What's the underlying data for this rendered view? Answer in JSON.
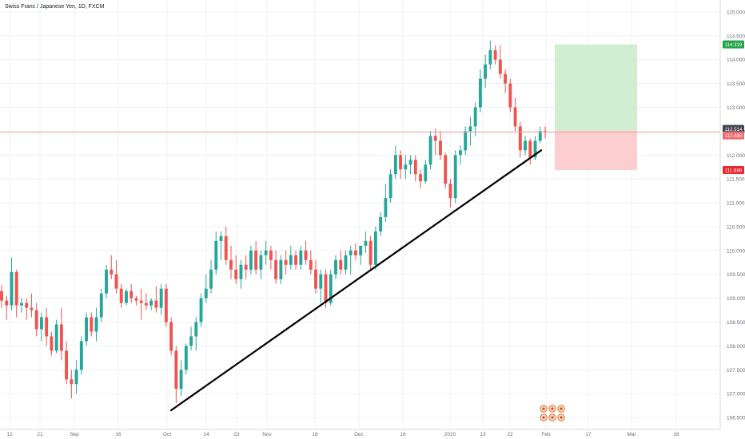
{
  "header": {
    "title": "Swiss Franc / Japanese Yen, 1D, FXCM"
  },
  "colors": {
    "up": "#26a69a",
    "down": "#ef5350",
    "trendline": "#000000",
    "target_zone": "#c8ecc8",
    "stop_zone": "#fbc6c8",
    "target_badge": "#22a548",
    "stop_badge": "#e8262d",
    "price_badge": "#3f4450",
    "last_badge": "#ef6b6e",
    "price_line": "#f4a3a6",
    "grid": "#eef0f3",
    "axis_text": "#6a6d78"
  },
  "chart_data": {
    "type": "candlestick",
    "title": "Swiss Franc / Japanese Yen, 1D, FXCM",
    "ylim": [
      106.25,
      115.25
    ],
    "y_ticks": [
      "106.500",
      "107.000",
      "107.500",
      "108.000",
      "108.500",
      "109.000",
      "109.500",
      "110.000",
      "110.500",
      "111.000",
      "111.500",
      "112.000",
      "112.500",
      "113.000",
      "113.500",
      "114.000",
      "114.500",
      "115.000"
    ],
    "x_ticks": [
      "12",
      "21",
      "Sep",
      "16",
      "Oct",
      "14",
      "23",
      "Nov",
      "18",
      "Dec",
      "16",
      "2020",
      "13",
      "22",
      "Feb",
      "17",
      "Mar",
      "16"
    ],
    "grid": true,
    "candles": [
      [
        109.15,
        109.28,
        108.8,
        108.95
      ],
      [
        108.95,
        109.05,
        108.55,
        108.85
      ],
      [
        108.85,
        109.85,
        108.75,
        109.55
      ],
      [
        109.55,
        109.6,
        108.6,
        108.85
      ],
      [
        108.85,
        109.0,
        108.7,
        108.9
      ],
      [
        108.9,
        109.0,
        108.55,
        108.8
      ],
      [
        108.8,
        109.1,
        108.6,
        108.75
      ],
      [
        108.75,
        108.9,
        108.2,
        108.35
      ],
      [
        108.35,
        108.7,
        108.1,
        108.6
      ],
      [
        108.6,
        108.8,
        108.0,
        108.2
      ],
      [
        108.2,
        108.3,
        107.8,
        107.9
      ],
      [
        107.9,
        108.55,
        107.85,
        108.45
      ],
      [
        108.45,
        108.8,
        107.7,
        107.9
      ],
      [
        107.9,
        108.1,
        107.2,
        107.3
      ],
      [
        107.3,
        107.5,
        106.9,
        107.2
      ],
      [
        107.2,
        107.7,
        107.0,
        107.5
      ],
      [
        107.5,
        108.2,
        107.4,
        108.1
      ],
      [
        108.1,
        108.7,
        108.0,
        108.6
      ],
      [
        108.6,
        108.7,
        108.2,
        108.3
      ],
      [
        108.3,
        108.8,
        108.1,
        108.6
      ],
      [
        108.6,
        109.2,
        108.5,
        109.1
      ],
      [
        109.1,
        109.7,
        109.0,
        109.6
      ],
      [
        109.6,
        109.9,
        109.4,
        109.5
      ],
      [
        109.5,
        109.8,
        109.1,
        109.2
      ],
      [
        109.2,
        109.3,
        108.8,
        108.9
      ],
      [
        108.9,
        109.2,
        108.85,
        109.15
      ],
      [
        109.15,
        109.3,
        108.9,
        109.0
      ],
      [
        109.0,
        109.05,
        108.85,
        108.95
      ],
      [
        108.95,
        109.2,
        108.55,
        108.9
      ],
      [
        108.9,
        109.1,
        108.75,
        108.85
      ],
      [
        108.85,
        109.0,
        108.75,
        108.95
      ],
      [
        108.95,
        109.25,
        108.7,
        108.8
      ],
      [
        108.8,
        109.3,
        108.65,
        109.2
      ],
      [
        109.2,
        109.3,
        108.4,
        108.5
      ],
      [
        108.5,
        108.6,
        107.8,
        107.9
      ],
      [
        107.9,
        108.0,
        106.8,
        107.1
      ],
      [
        107.1,
        107.7,
        106.95,
        107.5
      ],
      [
        107.5,
        108.05,
        107.4,
        108.0
      ],
      [
        108.0,
        108.4,
        107.9,
        108.2
      ],
      [
        108.2,
        108.6,
        107.9,
        108.5
      ],
      [
        108.5,
        109.1,
        108.4,
        109.0
      ],
      [
        109.0,
        109.5,
        108.9,
        109.2
      ],
      [
        109.2,
        109.8,
        109.1,
        109.6
      ],
      [
        109.6,
        110.4,
        109.5,
        110.2
      ],
      [
        110.2,
        110.4,
        109.8,
        110.3
      ],
      [
        110.3,
        110.5,
        109.7,
        109.8
      ],
      [
        109.8,
        110.1,
        109.4,
        109.6
      ],
      [
        109.6,
        109.9,
        109.3,
        109.4
      ],
      [
        109.4,
        109.8,
        109.2,
        109.7
      ],
      [
        109.7,
        109.9,
        109.4,
        109.6
      ],
      [
        109.6,
        110.1,
        109.5,
        110.0
      ],
      [
        110.0,
        110.2,
        109.5,
        109.6
      ],
      [
        109.6,
        110.0,
        109.4,
        109.9
      ],
      [
        109.9,
        110.2,
        109.7,
        110.0
      ],
      [
        110.0,
        110.1,
        109.6,
        109.8
      ],
      [
        109.8,
        110.0,
        109.3,
        109.4
      ],
      [
        109.4,
        109.9,
        109.3,
        109.8
      ],
      [
        109.8,
        110.0,
        109.5,
        109.7
      ],
      [
        109.7,
        110.1,
        109.6,
        109.9
      ],
      [
        109.9,
        110.0,
        109.6,
        109.7
      ],
      [
        109.7,
        110.1,
        109.6,
        110.0
      ],
      [
        110.0,
        110.2,
        109.7,
        109.8
      ],
      [
        109.8,
        110.0,
        109.5,
        109.6
      ],
      [
        109.6,
        109.8,
        109.1,
        109.2
      ],
      [
        109.2,
        109.6,
        108.9,
        109.5
      ],
      [
        109.5,
        109.6,
        108.8,
        108.9
      ],
      [
        108.9,
        109.6,
        108.85,
        109.5
      ],
      [
        109.5,
        109.9,
        109.4,
        109.8
      ],
      [
        109.8,
        110.0,
        109.5,
        109.6
      ],
      [
        109.6,
        110.0,
        109.5,
        109.9
      ],
      [
        109.9,
        110.1,
        109.5,
        110.0
      ],
      [
        110.0,
        110.15,
        109.8,
        109.9
      ],
      [
        109.9,
        110.1,
        109.7,
        110.1
      ],
      [
        110.1,
        110.4,
        109.95,
        110.2
      ],
      [
        110.2,
        110.3,
        109.6,
        109.7
      ],
      [
        109.7,
        110.5,
        109.6,
        110.4
      ],
      [
        110.4,
        110.8,
        110.3,
        110.7
      ],
      [
        110.7,
        111.4,
        110.6,
        111.1
      ],
      [
        111.1,
        111.7,
        111.0,
        111.6
      ],
      [
        111.6,
        112.2,
        111.5,
        112.0
      ],
      [
        112.0,
        112.1,
        111.5,
        111.7
      ],
      [
        111.7,
        112.0,
        111.5,
        111.8
      ],
      [
        111.8,
        112.0,
        111.6,
        111.9
      ],
      [
        111.9,
        112.0,
        111.45,
        111.6
      ],
      [
        111.6,
        111.7,
        111.3,
        111.45
      ],
      [
        111.45,
        111.9,
        111.4,
        111.8
      ],
      [
        111.8,
        112.5,
        111.7,
        112.4
      ],
      [
        112.4,
        112.55,
        112.0,
        112.3
      ],
      [
        112.3,
        112.5,
        111.9,
        112.0
      ],
      [
        112.0,
        112.05,
        111.3,
        111.4
      ],
      [
        111.4,
        111.5,
        110.9,
        111.1
      ],
      [
        111.1,
        112.1,
        111.0,
        112.0
      ],
      [
        112.0,
        112.2,
        111.8,
        112.1
      ],
      [
        112.1,
        112.6,
        112.0,
        112.5
      ],
      [
        112.5,
        112.8,
        112.2,
        112.6
      ],
      [
        112.6,
        113.1,
        112.4,
        113.0
      ],
      [
        113.0,
        113.8,
        112.9,
        113.6
      ],
      [
        113.6,
        114.1,
        113.4,
        113.9
      ],
      [
        113.9,
        114.4,
        113.8,
        114.2
      ],
      [
        114.2,
        114.3,
        113.9,
        114.0
      ],
      [
        114.0,
        114.3,
        113.6,
        113.7
      ],
      [
        113.7,
        113.8,
        113.3,
        113.5
      ],
      [
        113.5,
        113.6,
        112.9,
        113.0
      ],
      [
        113.0,
        113.2,
        112.5,
        112.6
      ],
      [
        112.6,
        112.7,
        111.95,
        112.1
      ],
      [
        112.1,
        112.4,
        112.0,
        112.3
      ],
      [
        112.3,
        112.35,
        111.8,
        111.95
      ],
      [
        111.95,
        112.4,
        111.9,
        112.3
      ],
      [
        112.3,
        112.6,
        112.25,
        112.5
      ],
      [
        112.5,
        112.6,
        112.35,
        112.48
      ]
    ],
    "annotations": {
      "trendline": [
        [
          0,
          106.65
        ],
        [
          1,
          112.1
        ]
      ],
      "target_level": 114.319,
      "entry_level": 112.514,
      "stop_level": 111.686,
      "last_price": 112.48
    },
    "price_labels": {
      "target": "114.319",
      "entry": "112.514",
      "last": "112.480",
      "stop": "111.686"
    }
  }
}
